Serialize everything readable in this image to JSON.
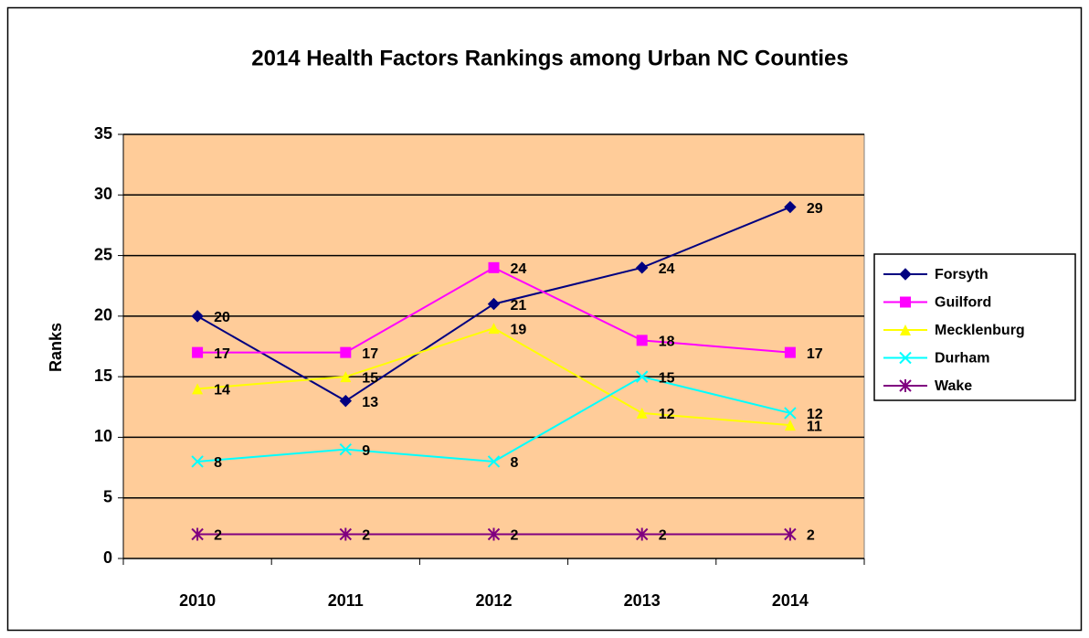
{
  "chart_data": {
    "type": "line",
    "title": "2014 Health Factors Rankings among Urban NC Counties",
    "y_label": "Ranks",
    "categories": [
      "2010",
      "2011",
      "2012",
      "2013",
      "2014"
    ],
    "series": [
      {
        "name": "Forsyth",
        "color": "#000080",
        "marker": "diamond",
        "values": [
          20,
          13,
          21,
          24,
          29
        ]
      },
      {
        "name": "Guilford",
        "color": "#ff00ff",
        "marker": "square",
        "values": [
          17,
          17,
          24,
          18,
          17
        ]
      },
      {
        "name": "Mecklenburg",
        "color": "#ffff00",
        "marker": "triangle",
        "values": [
          14,
          15,
          19,
          12,
          11
        ]
      },
      {
        "name": "Durham",
        "color": "#00ffff",
        "marker": "x",
        "values": [
          8,
          9,
          8,
          15,
          12
        ]
      },
      {
        "name": "Wake",
        "color": "#800080",
        "marker": "star",
        "values": [
          2,
          2,
          2,
          2,
          2
        ]
      }
    ],
    "ylim": [
      0,
      35
    ],
    "yticks": [
      0,
      5,
      10,
      15,
      20,
      25,
      30,
      35
    ],
    "grid": true,
    "legend": "right",
    "plot_background": "#ffcc99"
  }
}
